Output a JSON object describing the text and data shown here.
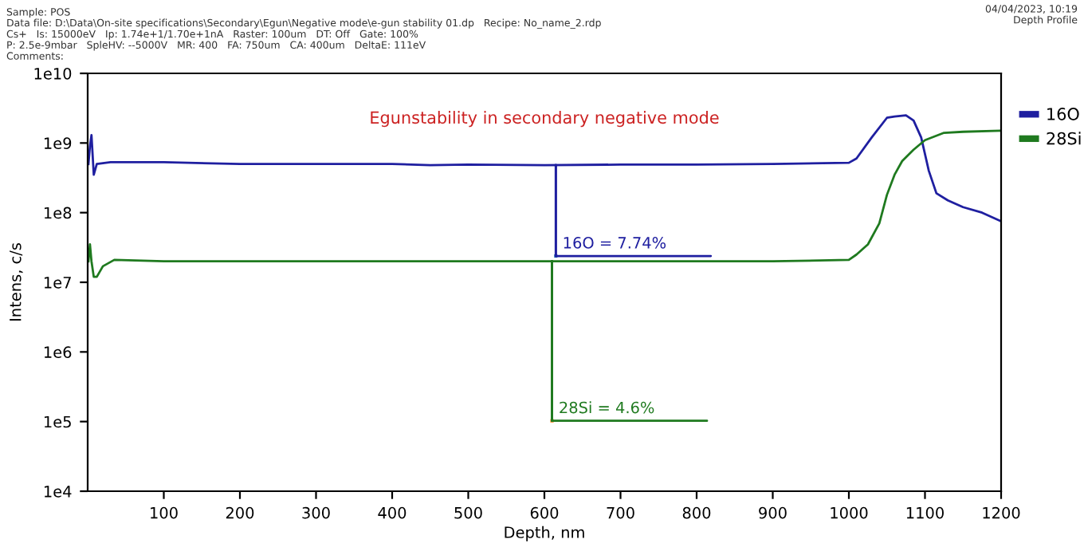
{
  "chart_data": {
    "type": "line",
    "title": "Egunstability in secondary negative mode",
    "xlabel": "Depth, nm",
    "ylabel": "Intens, c/s",
    "log": "y",
    "xlim": [
      0,
      1200
    ],
    "xticks": [
      100,
      200,
      300,
      400,
      500,
      600,
      700,
      800,
      900,
      1000,
      1100,
      1200
    ],
    "ylim": [
      10000,
      10000000000
    ],
    "yticks": [
      {
        "value": 10000,
        "label": "1e4"
      },
      {
        "value": 100000,
        "label": "1e5"
      },
      {
        "value": 1000000,
        "label": "1e6"
      },
      {
        "value": 10000000,
        "label": "1e7"
      },
      {
        "value": 100000000,
        "label": "1e8"
      },
      {
        "value": 1000000000,
        "label": "1e9"
      },
      {
        "value": 10000000000,
        "label": "1e10"
      }
    ],
    "grid": false,
    "legend": "top right",
    "marker": "none",
    "line_style": "solid",
    "series": [
      {
        "name": "16O",
        "color": "#1f1fa0",
        "x": [
          1,
          3,
          5,
          8,
          12,
          30,
          100,
          200,
          300,
          400,
          450,
          500,
          600,
          700,
          800,
          900,
          1000,
          1010,
          1030,
          1050,
          1060,
          1075,
          1085,
          1095,
          1105,
          1115,
          1130,
          1150,
          1175,
          1200
        ],
        "values": [
          500000000,
          900000000,
          1300000000,
          350000000,
          500000000,
          530000000,
          530000000,
          500000000,
          500000000,
          500000000,
          480000000,
          490000000,
          480000000,
          490000000,
          490000000,
          500000000,
          520000000,
          600000000,
          1200000000,
          2300000000,
          2400000000,
          2500000000,
          2100000000,
          1200000000,
          400000000,
          190000000,
          150000000,
          120000000,
          100000000,
          75000000
        ]
      },
      {
        "name": "28Si",
        "color": "#1f7a1f",
        "x": [
          1,
          3,
          5,
          8,
          12,
          20,
          35,
          100,
          300,
          500,
          700,
          900,
          1000,
          1010,
          1025,
          1040,
          1050,
          1060,
          1070,
          1085,
          1100,
          1125,
          1150,
          1200
        ],
        "values": [
          20000000,
          35000000,
          20000000,
          12000000,
          12000000,
          17000000,
          21000000,
          20000000,
          20000000,
          20000000,
          20000000,
          20000000,
          21000000,
          25000000,
          35000000,
          70000000,
          180000000,
          350000000,
          550000000,
          800000000,
          1100000000,
          1400000000,
          1450000000,
          1500000000
        ]
      }
    ],
    "annotations": [
      {
        "text": "16O = 7.74%",
        "x": 615,
        "y": 480000000
      },
      {
        "text": "28Si = 4.6%",
        "x": 610,
        "y": 20000000
      },
      "Sample: POS",
      "Data file: D:\\Data\\On-site specifications\\Secondary\\Egun\\Negative mode\\e-gun stability 01.dp   Recipe: No_name_2.rdp",
      "Cs+   Is: 15000eV   Ip: 1.74e+1/1.70e+1nA   Raster: 100um   DT: Off   Gate: 100%",
      "P: 2.5e-9mbar   SpleHV: --5000V   MR: 400   FA: 750um   CA: 400um   DeltaE: 111eV",
      "Comments:",
      "04/04/2023, 10:19",
      "Depth Profile"
    ]
  }
}
